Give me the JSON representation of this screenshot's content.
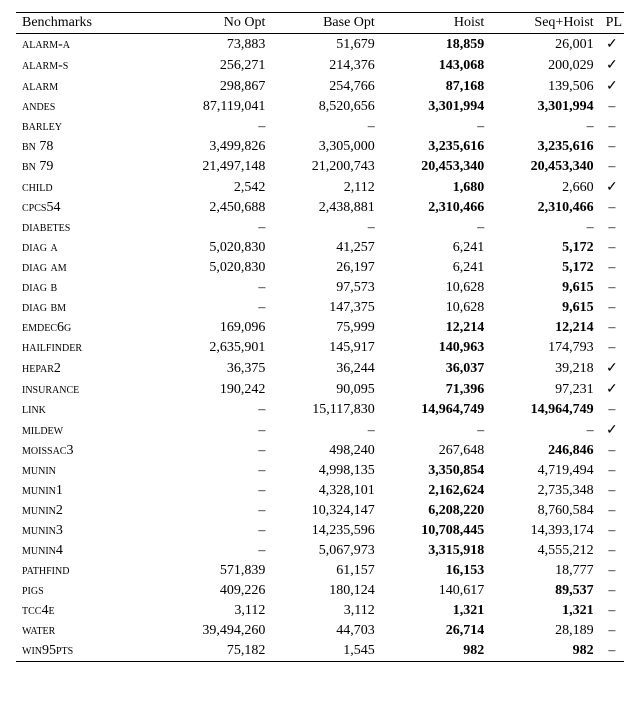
{
  "table": {
    "columns": [
      {
        "key": "bench",
        "label": "Benchmarks",
        "align": "left"
      },
      {
        "key": "noopt",
        "label": "No Opt",
        "align": "right"
      },
      {
        "key": "base",
        "label": "Base Opt",
        "align": "right"
      },
      {
        "key": "hoist",
        "label": "Hoist",
        "align": "right"
      },
      {
        "key": "seq",
        "label": "Seq+Hoist",
        "align": "right"
      },
      {
        "key": "pl",
        "label": "PL",
        "align": "center"
      }
    ],
    "rows": [
      {
        "bench_pre": "alarm-a",
        "bench_num": "",
        "noopt": "73,883",
        "base": "51,679",
        "hoist": "18,859",
        "seq": "26,001",
        "pl": "✓",
        "bold": "hoist"
      },
      {
        "bench_pre": "alarm-s",
        "bench_num": "",
        "noopt": "256,271",
        "base": "214,376",
        "hoist": "143,068",
        "seq": "200,029",
        "pl": "✓",
        "bold": "hoist"
      },
      {
        "bench_pre": "alarm",
        "bench_num": "",
        "noopt": "298,867",
        "base": "254,766",
        "hoist": "87,168",
        "seq": "139,506",
        "pl": "✓",
        "bold": "hoist"
      },
      {
        "bench_pre": "andes",
        "bench_num": "",
        "noopt": "87,119,041",
        "base": "8,520,656",
        "hoist": "3,301,994",
        "seq": "3,301,994",
        "pl": "–",
        "bold": "both"
      },
      {
        "bench_pre": "barley",
        "bench_num": "",
        "noopt": "–",
        "base": "–",
        "hoist": "–",
        "seq": "–",
        "pl": "–",
        "bold": "none"
      },
      {
        "bench_pre": "bn ",
        "bench_num": "78",
        "noopt": "3,499,826",
        "base": "3,305,000",
        "hoist": "3,235,616",
        "seq": "3,235,616",
        "pl": "–",
        "bold": "both"
      },
      {
        "bench_pre": "bn ",
        "bench_num": "79",
        "noopt": "21,497,148",
        "base": "21,200,743",
        "hoist": "20,453,340",
        "seq": "20,453,340",
        "pl": "–",
        "bold": "both"
      },
      {
        "bench_pre": "child",
        "bench_num": "",
        "noopt": "2,542",
        "base": "2,112",
        "hoist": "1,680",
        "seq": "2,660",
        "pl": "✓",
        "bold": "hoist"
      },
      {
        "bench_pre": "cpcs",
        "bench_num": "54",
        "noopt": "2,450,688",
        "base": "2,438,881",
        "hoist": "2,310,466",
        "seq": "2,310,466",
        "pl": "–",
        "bold": "both"
      },
      {
        "bench_pre": "diabetes",
        "bench_num": "",
        "noopt": "–",
        "base": "–",
        "hoist": "–",
        "seq": "–",
        "pl": "–",
        "bold": "none"
      },
      {
        "bench_pre": "diag a",
        "bench_num": "",
        "noopt": "5,020,830",
        "base": "41,257",
        "hoist": "6,241",
        "seq": "5,172",
        "pl": "–",
        "bold": "seq"
      },
      {
        "bench_pre": "diag am",
        "bench_num": "",
        "noopt": "5,020,830",
        "base": "26,197",
        "hoist": "6,241",
        "seq": "5,172",
        "pl": "–",
        "bold": "seq"
      },
      {
        "bench_pre": "diag b",
        "bench_num": "",
        "noopt": "–",
        "base": "97,573",
        "hoist": "10,628",
        "seq": "9,615",
        "pl": "–",
        "bold": "seq"
      },
      {
        "bench_pre": "diag bm",
        "bench_num": "",
        "noopt": "–",
        "base": "147,375",
        "hoist": "10,628",
        "seq": "9,615",
        "pl": "–",
        "bold": "seq"
      },
      {
        "bench_pre": "emdec",
        "bench_num": "6",
        "bench_post": "g",
        "noopt": "169,096",
        "base": "75,999",
        "hoist": "12,214",
        "seq": "12,214",
        "pl": "–",
        "bold": "both"
      },
      {
        "bench_pre": "hailfinder",
        "bench_num": "",
        "noopt": "2,635,901",
        "base": "145,917",
        "hoist": "140,963",
        "seq": "174,793",
        "pl": "–",
        "bold": "hoist"
      },
      {
        "bench_pre": "hepar",
        "bench_num": "2",
        "noopt": "36,375",
        "base": "36,244",
        "hoist": "36,037",
        "seq": "39,218",
        "pl": "✓",
        "bold": "hoist"
      },
      {
        "bench_pre": "insurance",
        "bench_num": "",
        "noopt": "190,242",
        "base": "90,095",
        "hoist": "71,396",
        "seq": "97,231",
        "pl": "✓",
        "bold": "hoist"
      },
      {
        "bench_pre": "link",
        "bench_num": "",
        "noopt": "–",
        "base": "15,117,830",
        "hoist": "14,964,749",
        "seq": "14,964,749",
        "pl": "–",
        "bold": "both"
      },
      {
        "bench_pre": "mildew",
        "bench_num": "",
        "noopt": "–",
        "base": "–",
        "hoist": "–",
        "seq": "–",
        "pl": "✓",
        "bold": "none"
      },
      {
        "bench_pre": "moissac",
        "bench_num": "3",
        "noopt": "–",
        "base": "498,240",
        "hoist": "267,648",
        "seq": "246,846",
        "pl": "–",
        "bold": "seq"
      },
      {
        "bench_pre": "munin",
        "bench_num": "",
        "noopt": "–",
        "base": "4,998,135",
        "hoist": "3,350,854",
        "seq": "4,719,494",
        "pl": "–",
        "bold": "hoist"
      },
      {
        "bench_pre": "munin",
        "bench_num": "1",
        "noopt": "–",
        "base": "4,328,101",
        "hoist": "2,162,624",
        "seq": "2,735,348",
        "pl": "–",
        "bold": "hoist"
      },
      {
        "bench_pre": "munin",
        "bench_num": "2",
        "noopt": "–",
        "base": "10,324,147",
        "hoist": "6,208,220",
        "seq": "8,760,584",
        "pl": "–",
        "bold": "hoist"
      },
      {
        "bench_pre": "munin",
        "bench_num": "3",
        "noopt": "–",
        "base": "14,235,596",
        "hoist": "10,708,445",
        "seq": "14,393,174",
        "pl": "–",
        "bold": "hoist"
      },
      {
        "bench_pre": "munin",
        "bench_num": "4",
        "noopt": "–",
        "base": "5,067,973",
        "hoist": "3,315,918",
        "seq": "4,555,212",
        "pl": "–",
        "bold": "hoist"
      },
      {
        "bench_pre": "pathfind",
        "bench_num": "",
        "noopt": "571,839",
        "base": "61,157",
        "hoist": "16,153",
        "seq": "18,777",
        "pl": "–",
        "bold": "hoist"
      },
      {
        "bench_pre": "pigs",
        "bench_num": "",
        "noopt": "409,226",
        "base": "180,124",
        "hoist": "140,617",
        "seq": "89,537",
        "pl": "–",
        "bold": "seq"
      },
      {
        "bench_pre": "tcc",
        "bench_num": "4",
        "bench_post": "e",
        "noopt": "3,112",
        "base": "3,112",
        "hoist": "1,321",
        "seq": "1,321",
        "pl": "–",
        "bold": "both"
      },
      {
        "bench_pre": "water",
        "bench_num": "",
        "noopt": "39,494,260",
        "base": "44,703",
        "hoist": "26,714",
        "seq": "28,189",
        "pl": "–",
        "bold": "hoist"
      },
      {
        "bench_pre": "win",
        "bench_num": "95",
        "bench_post": "pts",
        "noopt": "75,182",
        "base": "1,545",
        "hoist": "982",
        "seq": "982",
        "pl": "–",
        "bold": "both"
      }
    ]
  }
}
